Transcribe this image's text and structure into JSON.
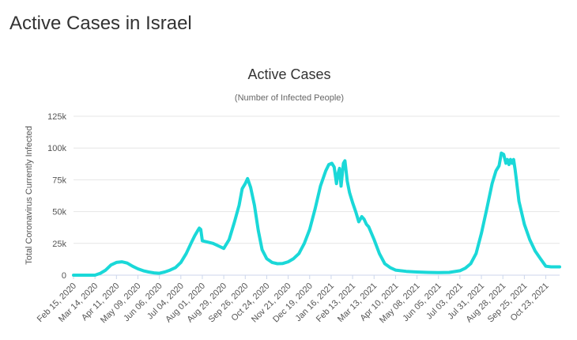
{
  "page": {
    "heading": "Active Cases in Israel"
  },
  "chart_data": {
    "type": "line",
    "title": "Active Cases",
    "subtitle": "(Number of Infected People)",
    "ylabel": "Total Coronavirus Currently Infected",
    "xlabel": "",
    "ylim": [
      0,
      125000
    ],
    "y_ticks": [
      0,
      25000,
      50000,
      75000,
      100000,
      125000
    ],
    "y_tick_labels": [
      "0",
      "25k",
      "50k",
      "75k",
      "100k",
      "125k"
    ],
    "x_tick_labels": [
      "Feb 15, 2020",
      "Mar 14, 2020",
      "Apr 11, 2020",
      "May 09, 2020",
      "Jun 06, 2020",
      "Jul 04, 2020",
      "Aug 01, 2020",
      "Aug 29, 2020",
      "Sep 26, 2020",
      "Oct 24, 2020",
      "Nov 21, 2020",
      "Dec 19, 2020",
      "Jan 16, 2021",
      "Feb 13, 2021",
      "Mar 13, 2021",
      "Apr 10, 2021",
      "May 08, 2021",
      "Jun 05, 2021",
      "Jul 03, 2021",
      "Jul 31, 2021",
      "Aug 28, 2021",
      "Sep 25, 2021",
      "Oct 23, 2021"
    ],
    "grid": true,
    "line_color": "#1ad8d8",
    "series": [
      {
        "x": [
          "2020-02-15",
          "2020-03-14",
          "2020-03-21",
          "2020-03-28",
          "2020-04-04",
          "2020-04-11",
          "2020-04-18",
          "2020-04-25",
          "2020-05-02",
          "2020-05-09",
          "2020-05-16",
          "2020-05-23",
          "2020-05-30",
          "2020-06-06",
          "2020-06-13",
          "2020-06-20",
          "2020-06-27",
          "2020-07-04",
          "2020-07-11",
          "2020-07-18",
          "2020-07-22",
          "2020-07-26",
          "2020-07-28",
          "2020-07-30",
          "2020-08-01",
          "2020-08-08",
          "2020-08-15",
          "2020-08-22",
          "2020-08-29",
          "2020-09-05",
          "2020-09-12",
          "2020-09-18",
          "2020-09-22",
          "2020-09-26",
          "2020-09-29",
          "2020-10-03",
          "2020-10-08",
          "2020-10-13",
          "2020-10-18",
          "2020-10-24",
          "2020-10-31",
          "2020-11-07",
          "2020-11-14",
          "2020-11-21",
          "2020-11-28",
          "2020-12-05",
          "2020-12-12",
          "2020-12-19",
          "2020-12-26",
          "2021-01-02",
          "2021-01-09",
          "2021-01-13",
          "2021-01-17",
          "2021-01-20",
          "2021-01-23",
          "2021-01-25",
          "2021-01-27",
          "2021-01-29",
          "2021-02-01",
          "2021-02-03",
          "2021-02-06",
          "2021-02-09",
          "2021-02-13",
          "2021-02-17",
          "2021-02-21",
          "2021-02-25",
          "2021-02-28",
          "2021-03-03",
          "2021-03-06",
          "2021-03-13",
          "2021-03-20",
          "2021-03-27",
          "2021-04-03",
          "2021-04-10",
          "2021-04-24",
          "2021-05-08",
          "2021-05-22",
          "2021-06-05",
          "2021-06-19",
          "2021-07-03",
          "2021-07-10",
          "2021-07-17",
          "2021-07-24",
          "2021-07-31",
          "2021-08-07",
          "2021-08-14",
          "2021-08-19",
          "2021-08-23",
          "2021-08-26",
          "2021-08-29",
          "2021-09-01",
          "2021-09-03",
          "2021-09-05",
          "2021-09-07",
          "2021-09-09",
          "2021-09-11",
          "2021-09-13",
          "2021-09-15",
          "2021-09-18",
          "2021-09-25",
          "2021-10-02",
          "2021-10-09",
          "2021-10-16",
          "2021-10-23",
          "2021-10-30",
          "2021-11-06",
          "2021-11-10"
        ],
        "values": [
          0,
          0,
          1500,
          4000,
          8000,
          10000,
          10500,
          9500,
          7000,
          5000,
          3500,
          2500,
          1800,
          1500,
          2500,
          4000,
          6000,
          10000,
          17000,
          26000,
          31000,
          35000,
          37000,
          36000,
          27000,
          26000,
          25000,
          23000,
          21000,
          28000,
          42000,
          55000,
          68000,
          72000,
          76000,
          69000,
          55000,
          35000,
          20000,
          13000,
          10000,
          9000,
          9200,
          10500,
          13000,
          17000,
          25000,
          36000,
          52000,
          70000,
          82000,
          87000,
          88000,
          85000,
          72000,
          80000,
          84000,
          70000,
          88000,
          90000,
          74000,
          65000,
          57000,
          50000,
          42000,
          46000,
          44000,
          40000,
          38000,
          28000,
          17000,
          9000,
          6000,
          4000,
          3000,
          2500,
          2200,
          2000,
          2200,
          3500,
          5500,
          9000,
          17000,
          33000,
          52000,
          72000,
          82000,
          86000,
          96000,
          95000,
          88000,
          91000,
          87000,
          91000,
          88000,
          91000,
          83000,
          73000,
          58000,
          40000,
          28000,
          19000,
          13000,
          7000,
          6500,
          6500,
          6500
        ]
      }
    ]
  }
}
